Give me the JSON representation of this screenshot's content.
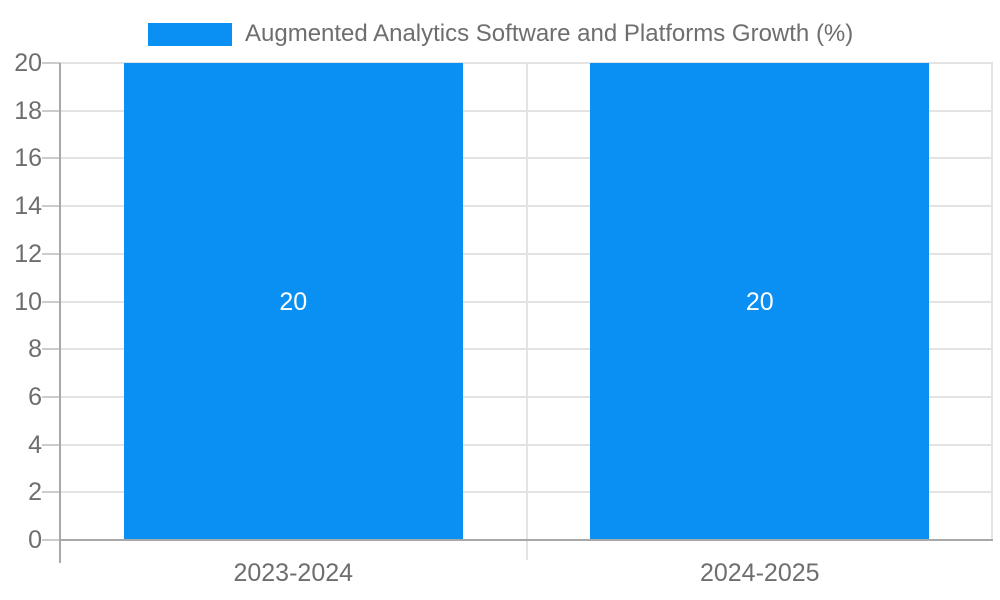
{
  "legend": {
    "label": "Augmented Analytics Software and Platforms Growth (%)",
    "swatch_color": "#0a8ff2",
    "position": "top"
  },
  "chart_data": {
    "type": "bar",
    "title": "Augmented Analytics Software and Platforms Growth (%)",
    "categories": [
      "2023-2024",
      "2024-2025"
    ],
    "series": [
      {
        "name": "Augmented Analytics Software and Platforms Growth (%)",
        "values": [
          20,
          20
        ]
      }
    ],
    "bar_value_labels": [
      "20",
      "20"
    ],
    "xlabel": "",
    "ylabel": "",
    "ylim": [
      0,
      20
    ],
    "yticks": [
      0,
      2,
      4,
      6,
      8,
      10,
      12,
      14,
      16,
      18,
      20
    ],
    "grid": true,
    "legend_position": "top",
    "colors": {
      "bar": "#0a8ff2",
      "bar_label": "#ffffff",
      "grid": "#e3e3e3",
      "tick": "#cccccc",
      "axis": "#a8a8a8",
      "text": "#6e6e6e"
    }
  }
}
